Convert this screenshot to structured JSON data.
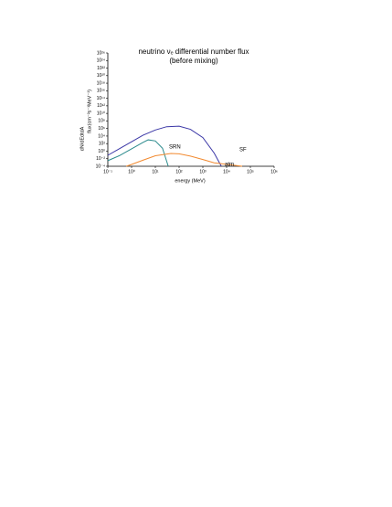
{
  "chart_data": {
    "type": "line",
    "title": "neutrino νₑ differential number flux",
    "subtitle": "(before mixing)",
    "x_label": "energy (MeV)",
    "y_label": "flux(cm⁻²s⁻¹MeV⁻¹)",
    "y_label_prefix": "dN/dEdtdA",
    "log_x": true,
    "log_y": true,
    "xlim": [
      0.1,
      1000000
    ],
    "ylim": [
      0.0001,
      1e+26
    ],
    "xticks": [
      {
        "value": 0.1,
        "label": "10⁻¹"
      },
      {
        "value": 1,
        "label": "10⁰"
      },
      {
        "value": 10,
        "label": "10¹"
      },
      {
        "value": 100,
        "label": "10²"
      },
      {
        "value": 1000,
        "label": "10³"
      },
      {
        "value": 10000,
        "label": "10⁴"
      },
      {
        "value": 100000,
        "label": "10⁵"
      },
      {
        "value": 1000000,
        "label": "10⁶"
      }
    ],
    "yticks": [
      {
        "value": 0.0001,
        "label": "10⁻⁴"
      },
      {
        "value": 0.01,
        "label": "10⁻²"
      },
      {
        "value": 1,
        "label": "10⁰"
      },
      {
        "value": 100,
        "label": "10²"
      },
      {
        "value": 10000,
        "label": "10⁴"
      },
      {
        "value": 1000000,
        "label": "10⁶"
      },
      {
        "value": 100000000,
        "label": "10⁸"
      },
      {
        "value": 10000000000,
        "label": "10¹⁰"
      },
      {
        "value": 1000000000000,
        "label": "10¹²"
      },
      {
        "value": 100000000000000,
        "label": "10¹⁴"
      },
      {
        "value": 1e+16,
        "label": "10¹⁶"
      },
      {
        "value": 1e+18,
        "label": "10¹⁸"
      },
      {
        "value": 1e+20,
        "label": "10²⁰"
      },
      {
        "value": 1e+22,
        "label": "10²²"
      },
      {
        "value": 1e+24,
        "label": "10²⁴"
      },
      {
        "value": 1e+26,
        "label": "10²⁶"
      }
    ],
    "series": [
      {
        "name": "SF",
        "color": "#3a36a6",
        "x": [
          0.1,
          0.3,
          1,
          3,
          10,
          30,
          100,
          300,
          1000,
          3000,
          6000
        ],
        "values": [
          0.08,
          4,
          300,
          16000,
          400000,
          3000000,
          4000000,
          600000,
          4000,
          0.3,
          0.0001
        ]
      },
      {
        "name": "SRN",
        "color": "#2a8a8c",
        "x": [
          0.1,
          0.3,
          1,
          3,
          5,
          10,
          20,
          35
        ],
        "values": [
          0.003,
          0.06,
          4,
          200,
          1000,
          500,
          6,
          0.0001
        ]
      },
      {
        "name": "atm",
        "color": "#f28a30",
        "x": [
          0.6,
          1,
          3,
          10,
          45,
          100,
          300,
          1000,
          3000,
          45000
        ],
        "values": [
          0.0001,
          0.0003,
          0.004,
          0.06,
          0.25,
          0.2,
          0.05,
          0.006,
          0.0008,
          0.0001
        ]
      }
    ]
  }
}
